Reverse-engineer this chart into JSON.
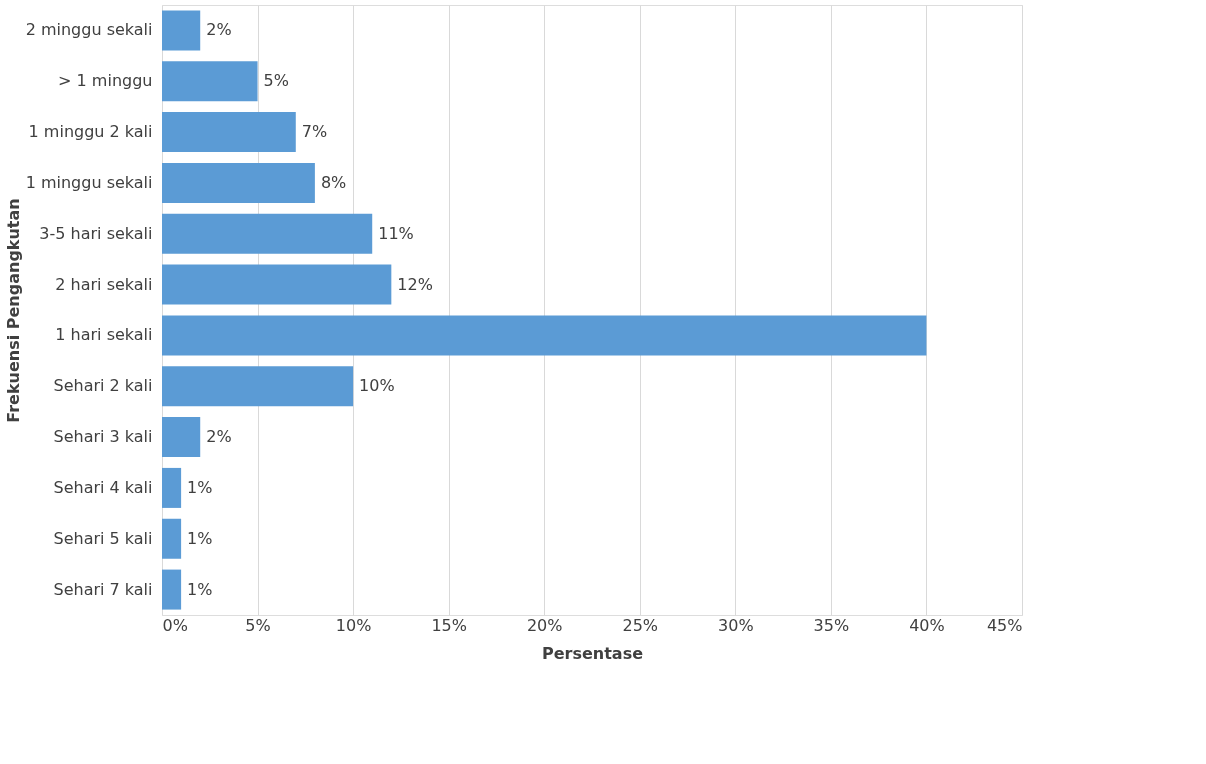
{
  "chart_data": {
    "type": "bar",
    "orientation": "horizontal",
    "xlabel": "Persentase",
    "ylabel": "Frekuensi Pengangkutan",
    "categories": [
      "2 minggu sekali",
      "> 1 minggu",
      "1 minggu 2 kali",
      "1 minggu sekali",
      "3-5 hari sekali",
      "2 hari sekali",
      "1 hari sekali",
      "Sehari 2 kali",
      "Sehari 3 kali",
      "Sehari 4 kali",
      "Sehari 5 kali",
      "Sehari 7 kali"
    ],
    "values": [
      2,
      5,
      7,
      8,
      11,
      12,
      40,
      10,
      2,
      1,
      1,
      1
    ],
    "value_labels": [
      "2%",
      "5%",
      "7%",
      "8%",
      "11%",
      "12%",
      null,
      "10%",
      "2%",
      "1%",
      "1%",
      "1%"
    ],
    "color": "#5b9bd5",
    "xlim": [
      0,
      45
    ],
    "xticks": [
      {
        "value": 0,
        "label": "0%"
      },
      {
        "value": 5,
        "label": "5%"
      },
      {
        "value": 10,
        "label": "10%"
      },
      {
        "value": 15,
        "label": "15%"
      },
      {
        "value": 20,
        "label": "20%"
      },
      {
        "value": 25,
        "label": "25%"
      },
      {
        "value": 30,
        "label": "30%"
      },
      {
        "value": 35,
        "label": "35%"
      },
      {
        "value": 40,
        "label": "40%"
      },
      {
        "value": 45,
        "label": "45%"
      }
    ],
    "grid": "x"
  }
}
